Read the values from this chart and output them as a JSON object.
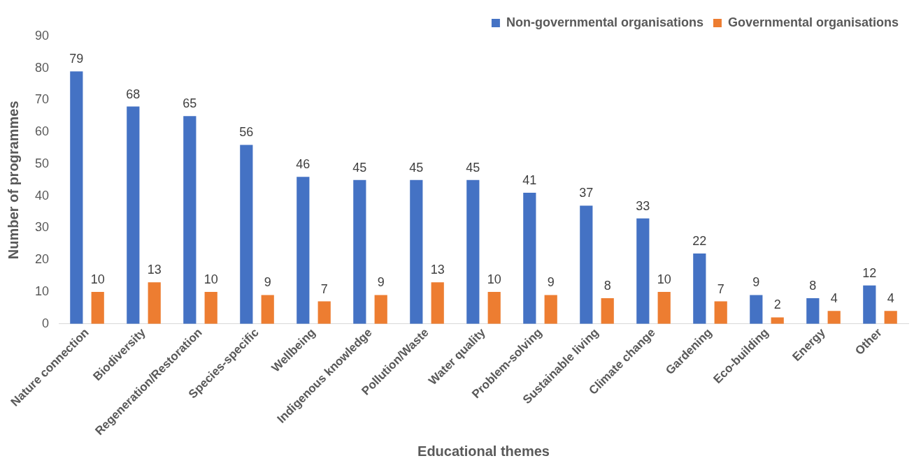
{
  "chart_data": {
    "type": "bar",
    "xlabel": "Educational themes",
    "ylabel": "Number of programmes",
    "categories": [
      "Nature connection",
      "Biodiversity",
      "Regeneration/Restoration",
      "Species-specific",
      "Wellbeing",
      "Indigenous knowledge",
      "Pollution/Waste",
      "Water quality",
      "Problem-solving",
      "Sustainable living",
      "Climate change",
      "Gardening",
      "Eco-building",
      "Energy",
      "Other"
    ],
    "series": [
      {
        "name": "Non-governmental organisations",
        "color": "#4472c4",
        "values": [
          79,
          68,
          65,
          56,
          46,
          45,
          45,
          45,
          41,
          37,
          33,
          22,
          9,
          8,
          12
        ]
      },
      {
        "name": "Governmental organisations",
        "color": "#ed7d31",
        "values": [
          10,
          13,
          10,
          9,
          7,
          9,
          13,
          10,
          9,
          8,
          10,
          7,
          2,
          4,
          4
        ]
      }
    ],
    "ylim": [
      0,
      90
    ],
    "yticks": [
      0,
      10,
      20,
      30,
      40,
      50,
      60,
      70,
      80,
      90
    ],
    "grid": false,
    "legend": "top right",
    "data_labels": true
  }
}
